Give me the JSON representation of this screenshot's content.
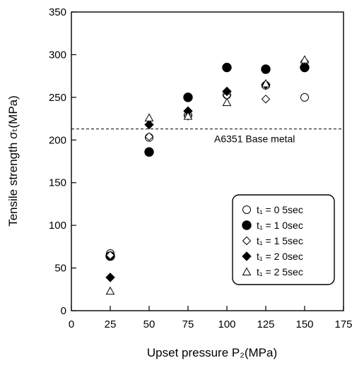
{
  "chart_data": {
    "type": "scatter",
    "xlabel": "Upset pressure P₂(MPa)",
    "ylabel": "Tensile strength σₜ(MPa)",
    "xlim": [
      0,
      175
    ],
    "ylim": [
      0,
      350
    ],
    "xticks": [
      0,
      25,
      50,
      75,
      100,
      125,
      150,
      175
    ],
    "yticks": [
      0,
      50,
      100,
      150,
      200,
      250,
      300,
      350
    ],
    "grid": false,
    "legend_position": "bottom-right",
    "reference_line": {
      "label": "A6351 Base metal",
      "y": 213,
      "style": "dashed"
    },
    "series": [
      {
        "name": "t₁ = 0 5sec",
        "marker": "open-circle",
        "x": [
          25,
          50,
          75,
          100,
          125,
          150
        ],
        "y": [
          67,
          203,
          229,
          253,
          264,
          250
        ]
      },
      {
        "name": "t₁ = 1 0sec",
        "marker": "filled-circle",
        "x": [
          25,
          50,
          75,
          100,
          125,
          150
        ],
        "y": [
          64,
          186,
          250,
          285,
          283,
          285
        ]
      },
      {
        "name": "t₁ = 1 5sec",
        "marker": "open-diamond",
        "x": [
          25,
          50,
          75,
          100,
          125,
          150
        ],
        "y": [
          65,
          204,
          228,
          252,
          248,
          292
        ]
      },
      {
        "name": "t₁ = 2 0sec",
        "marker": "filled-diamond",
        "x": [
          25,
          50,
          75,
          100,
          125,
          150
        ],
        "y": [
          39,
          218,
          234,
          257,
          265,
          285
        ]
      },
      {
        "name": "t₁ = 2 5sec",
        "marker": "open-triangle",
        "x": [
          25,
          50,
          75,
          100,
          125,
          150
        ],
        "y": [
          23,
          226,
          228,
          244,
          266,
          294
        ]
      }
    ]
  }
}
